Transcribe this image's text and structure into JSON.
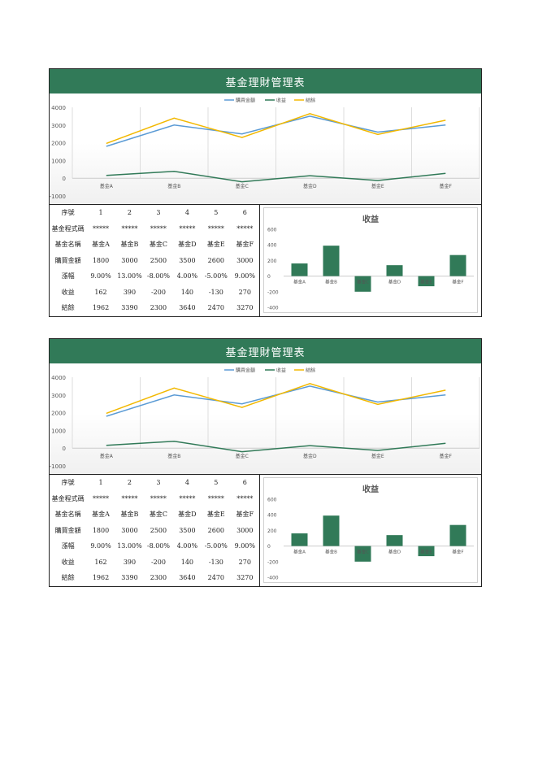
{
  "sheets": [
    {
      "title": "基金理財管理表",
      "table": {
        "headers": [
          "序號",
          "基金程式碼",
          "基金名稱",
          "購買金額",
          "漲幅",
          "收益",
          "結餘"
        ],
        "columns": [
          [
            "1",
            "*****",
            "基金A",
            "1800",
            "9.00%",
            "162",
            "1962"
          ],
          [
            "2",
            "*****",
            "基金B",
            "3000",
            "13.00%",
            "390",
            "3390"
          ],
          [
            "3",
            "*****",
            "基金C",
            "2500",
            "-8.00%",
            "-200",
            "2300"
          ],
          [
            "4",
            "*****",
            "基金D",
            "3500",
            "4.00%",
            "140",
            "3640"
          ],
          [
            "5",
            "*****",
            "基金E",
            "2600",
            "-5.00%",
            "-130",
            "2470"
          ],
          [
            "6",
            "*****",
            "基金F",
            "3000",
            "9.00%",
            "270",
            "3270"
          ]
        ]
      }
    },
    {
      "title": "基金理財管理表",
      "table": {
        "headers": [
          "序號",
          "基金程式碼",
          "基金名稱",
          "購買金額",
          "漲幅",
          "收益",
          "結餘"
        ],
        "columns": [
          [
            "1",
            "*****",
            "基金A",
            "1800",
            "9.00%",
            "162",
            "1962"
          ],
          [
            "2",
            "*****",
            "基金B",
            "3000",
            "13.00%",
            "390",
            "3390"
          ],
          [
            "3",
            "*****",
            "基金C",
            "2500",
            "-8.00%",
            "-200",
            "2300"
          ],
          [
            "4",
            "*****",
            "基金D",
            "3500",
            "4.00%",
            "140",
            "3640"
          ],
          [
            "5",
            "*****",
            "基金E",
            "2600",
            "-5.00%",
            "-130",
            "2470"
          ],
          [
            "6",
            "*****",
            "基金F",
            "3000",
            "9.00%",
            "270",
            "3270"
          ]
        ]
      }
    }
  ],
  "chart_data": [
    {
      "type": "line",
      "categories": [
        "基金A",
        "基金B",
        "基金C",
        "基金D",
        "基金E",
        "基金F"
      ],
      "series": [
        {
          "name": "購買金額",
          "values": [
            1800,
            3000,
            2500,
            3500,
            2600,
            3000
          ],
          "color": "#5b9bd5"
        },
        {
          "name": "收益",
          "values": [
            162,
            390,
            -200,
            140,
            -130,
            270
          ],
          "color": "#317a58"
        },
        {
          "name": "結餘",
          "values": [
            1962,
            3390,
            2300,
            3640,
            2470,
            3270
          ],
          "color": "#f2b800"
        }
      ],
      "ylim": [
        -1000,
        4000
      ],
      "yticks": [
        "4000",
        "3000",
        "2000",
        "1000",
        "0",
        "-1000"
      ],
      "legend": "top",
      "grid": "vertical"
    },
    {
      "type": "bar",
      "title": "收益",
      "categories": [
        "基金A",
        "基金B",
        "基金C",
        "基金D",
        "基金E",
        "基金F"
      ],
      "values": [
        162,
        390,
        -200,
        140,
        -130,
        270
      ],
      "ylim": [
        -400,
        600
      ],
      "yticks": [
        "600",
        "400",
        "200",
        "0",
        "-200",
        "-400"
      ],
      "bar_color": "#317a58"
    }
  ]
}
